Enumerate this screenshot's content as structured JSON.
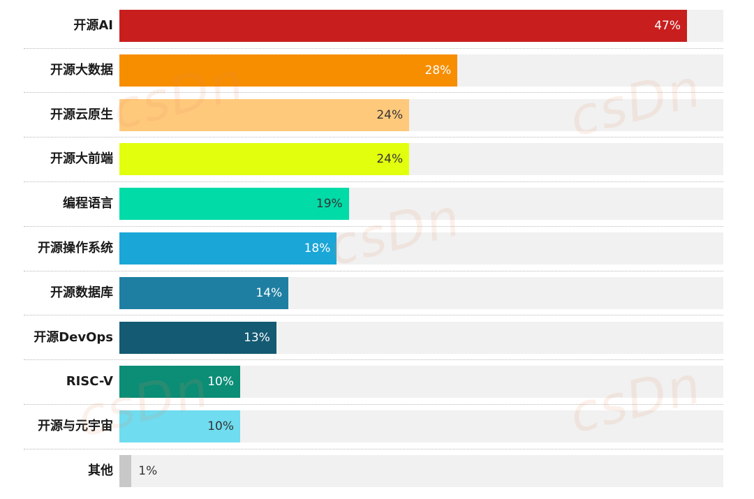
{
  "watermark": "csDn",
  "chart_data": {
    "type": "bar",
    "orientation": "horizontal",
    "xlim": [
      0,
      50
    ],
    "grid": false,
    "categories": [
      "开源AI",
      "开源大数据",
      "开源云原生",
      "开源大前端",
      "编程语言",
      "开源操作系统",
      "开源数据库",
      "开源DevOps",
      "RISC-V",
      "开源与元宇宙",
      "其他"
    ],
    "values": [
      47,
      28,
      24,
      24,
      19,
      18,
      14,
      13,
      10,
      10,
      1
    ],
    "value_labels": [
      "47%",
      "28%",
      "24%",
      "24%",
      "19%",
      "18%",
      "14%",
      "13%",
      "10%",
      "10%",
      "1%"
    ],
    "colors": [
      "#c81e1e",
      "#f78e00",
      "#ffc97c",
      "#e2ff0e",
      "#00dba8",
      "#1aa6d6",
      "#1f7fa2",
      "#145a73",
      "#0b8d76",
      "#6fdcef",
      "#c8c8c8"
    ],
    "label_colors": [
      "#ffffff",
      "#ffffff",
      "#333333",
      "#333333",
      "#333333",
      "#ffffff",
      "#ffffff",
      "#ffffff",
      "#ffffff",
      "#333333",
      "#333333"
    ]
  }
}
